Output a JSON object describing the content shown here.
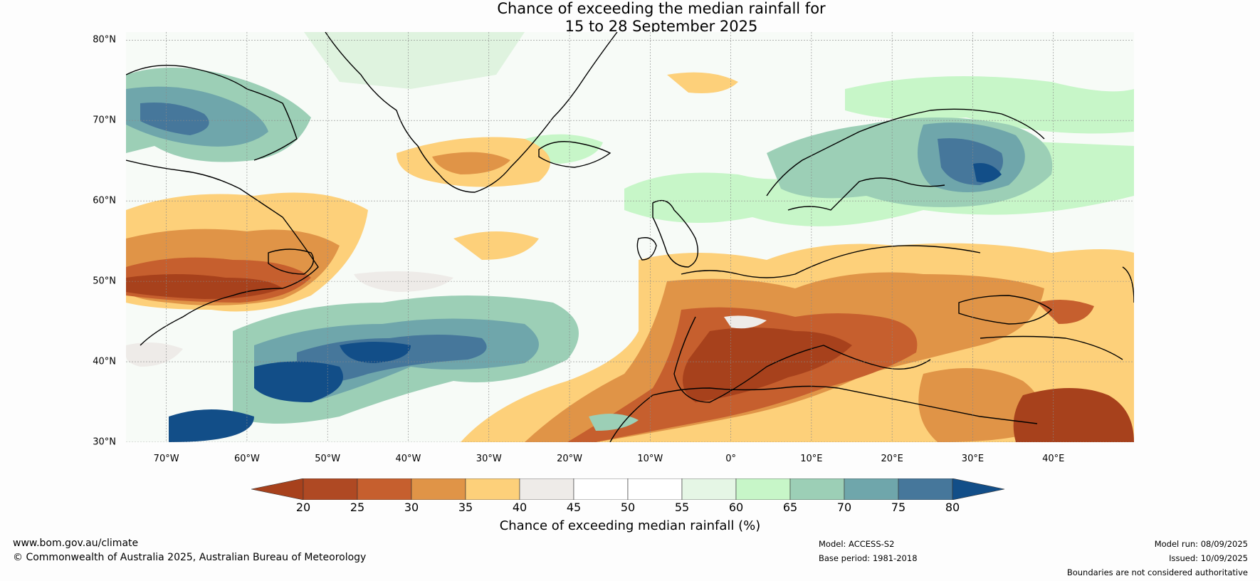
{
  "title": {
    "line1": "Chance of exceeding the median rainfall for",
    "line2": "15 to 28 September 2025"
  },
  "map": {
    "lat_labels": [
      "80°N",
      "70°N",
      "60°N",
      "50°N",
      "40°N",
      "30°N"
    ],
    "lat_values": [
      80,
      70,
      60,
      50,
      40,
      30
    ],
    "lon_labels": [
      "70°W",
      "60°W",
      "50°W",
      "40°W",
      "30°W",
      "20°W",
      "10°W",
      "0°",
      "10°E",
      "20°E",
      "30°E",
      "40°E"
    ],
    "lon_values": [
      -70,
      -60,
      -50,
      -40,
      -30,
      -20,
      -10,
      0,
      10,
      20,
      30,
      40
    ],
    "lon_range": [
      -75,
      50
    ],
    "lat_range": [
      30,
      81
    ],
    "gridlines": true
  },
  "colorbar": {
    "ticks": [
      "20",
      "25",
      "30",
      "35",
      "40",
      "45",
      "50",
      "55",
      "60",
      "65",
      "70",
      "75",
      "80"
    ],
    "colors": [
      "#a7411c",
      "#af4923",
      "#c65f2e",
      "#e09447",
      "#fdd07a",
      "#eeebe8",
      "#ffffff",
      "#ffffff",
      "#e5f6e5",
      "#c7f6c8",
      "#9ccfb6",
      "#6fa6ab",
      "#46779b",
      "#124e88"
    ],
    "label": "Chance of exceeding median rainfall (%)"
  },
  "footer": {
    "website": "www.bom.gov.au/climate",
    "copyright": "© Commonwealth of Australia 2025, Australian Bureau of Meteorology",
    "model": "Model: ACCESS-S2",
    "base_period": "Base period: 1981-2018",
    "model_run": "Model run: 08/09/2025",
    "issued": "Issued: 10/09/2025",
    "disclaimer": "Boundaries are not considered authoritative"
  }
}
